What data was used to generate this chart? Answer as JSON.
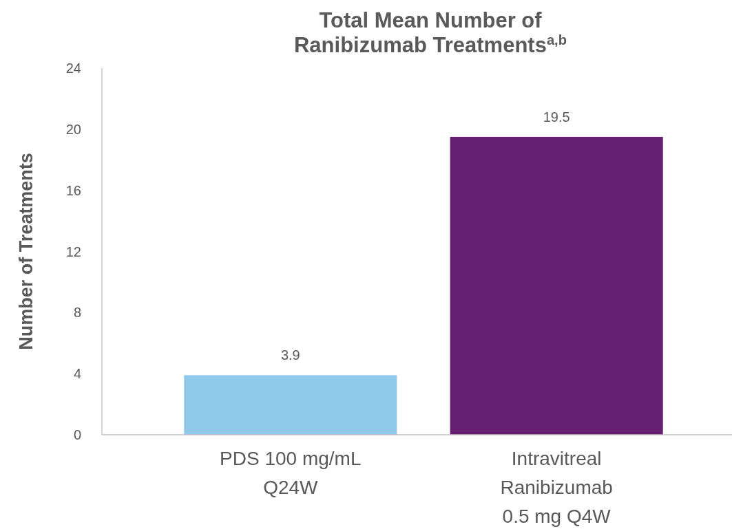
{
  "chart_data": {
    "type": "bar",
    "title": "Total Mean Number of\nRanibizumab Treatments$^{a,b}$",
    "ylabel": "Number of Treatments",
    "categories": [
      "PDS 100 mg/mL\nQ24W",
      "Intravitreal\nRanibizumab\n0.5 mg Q4W"
    ],
    "values": [
      3.9,
      19.5
    ],
    "colors": [
      "#8fc8e8",
      "#671f74"
    ],
    "ylim": [
      0,
      24
    ],
    "yticks": [
      0,
      4,
      8,
      12,
      16,
      20,
      24
    ],
    "data_labels": true
  }
}
